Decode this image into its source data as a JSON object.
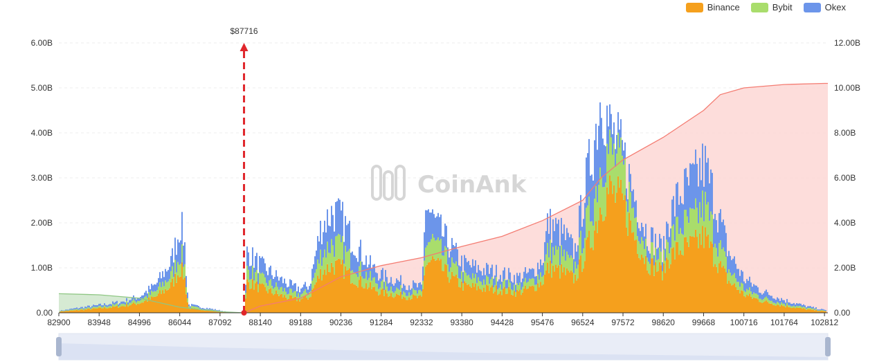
{
  "legend": [
    {
      "name": "Binance",
      "color": "#f5a01d"
    },
    {
      "name": "Bybit",
      "color": "#a9dd6c"
    },
    {
      "name": "Okex",
      "color": "#6c95ea"
    }
  ],
  "watermark": "CoinAnk",
  "marker_label": "$87716",
  "chart_data": {
    "type": "area",
    "x_categories": [
      "82900",
      "83948",
      "84996",
      "86044",
      "87092",
      "88140",
      "89188",
      "90236",
      "91284",
      "92332",
      "93380",
      "94428",
      "95476",
      "96524",
      "97572",
      "98620",
      "99668",
      "100716",
      "101764",
      "102812"
    ],
    "x_range": [
      82900,
      102900
    ],
    "current_price": 87716,
    "left_axis": {
      "ticks": [
        "0.00",
        "1.00B",
        "2.00B",
        "3.00B",
        "4.00B",
        "5.00B",
        "6.00B"
      ],
      "range": [
        0,
        6
      ]
    },
    "right_axis": {
      "ticks": [
        "0.00",
        "2.00B",
        "4.00B",
        "6.00B",
        "8.00B",
        "10.00B",
        "12.00B"
      ],
      "range": [
        0,
        12
      ]
    },
    "series": [
      {
        "name": "Binance",
        "stack": "liquidation",
        "points": [
          [
            82950,
            0.03
          ],
          [
            83400,
            0.06
          ],
          [
            83948,
            0.1
          ],
          [
            84500,
            0.14
          ],
          [
            84996,
            0.22
          ],
          [
            85400,
            0.35
          ],
          [
            85800,
            0.6
          ],
          [
            86000,
            0.9
          ],
          [
            86044,
            1.0
          ],
          [
            86150,
            0.8
          ],
          [
            86250,
            0.1
          ],
          [
            86700,
            0.06
          ],
          [
            87092,
            0.03
          ],
          [
            87300,
            0.01
          ],
          [
            87716,
            0.0
          ],
          [
            87780,
            0.7
          ],
          [
            87950,
            0.62
          ],
          [
            88140,
            0.55
          ],
          [
            88600,
            0.4
          ],
          [
            89000,
            0.3
          ],
          [
            89188,
            0.3
          ],
          [
            89400,
            0.35
          ],
          [
            89700,
            0.9
          ],
          [
            90000,
            1.05
          ],
          [
            90236,
            1.0
          ],
          [
            90500,
            0.8
          ],
          [
            91000,
            0.55
          ],
          [
            91284,
            0.45
          ],
          [
            91800,
            0.38
          ],
          [
            92332,
            0.32
          ],
          [
            92420,
            1.1
          ],
          [
            92600,
            1.15
          ],
          [
            93000,
            0.85
          ],
          [
            93380,
            0.6
          ],
          [
            93800,
            0.55
          ],
          [
            94428,
            0.5
          ],
          [
            94800,
            0.45
          ],
          [
            95200,
            0.55
          ],
          [
            95476,
            0.7
          ],
          [
            95600,
            1.0
          ],
          [
            96000,
            0.9
          ],
          [
            96300,
            0.75
          ],
          [
            96524,
            1.2
          ],
          [
            96800,
            1.8
          ],
          [
            97000,
            2.5
          ],
          [
            97200,
            2.7
          ],
          [
            97572,
            2.4
          ],
          [
            97800,
            1.8
          ],
          [
            98200,
            1.1
          ],
          [
            98620,
            0.9
          ],
          [
            98700,
            1.2
          ],
          [
            99000,
            1.4
          ],
          [
            99400,
            1.5
          ],
          [
            99668,
            1.7
          ],
          [
            99900,
            1.3
          ],
          [
            100300,
            0.7
          ],
          [
            100716,
            0.4
          ],
          [
            101200,
            0.25
          ],
          [
            101764,
            0.15
          ],
          [
            102300,
            0.08
          ],
          [
            102812,
            0.03
          ]
        ]
      },
      {
        "name": "Bybit",
        "stack": "liquidation",
        "points": [
          [
            82950,
            0.01
          ],
          [
            83400,
            0.02
          ],
          [
            83948,
            0.03
          ],
          [
            84500,
            0.05
          ],
          [
            84996,
            0.07
          ],
          [
            85400,
            0.12
          ],
          [
            85800,
            0.22
          ],
          [
            86000,
            0.32
          ],
          [
            86044,
            0.35
          ],
          [
            86150,
            0.3
          ],
          [
            86250,
            0.04
          ],
          [
            86700,
            0.02
          ],
          [
            87092,
            0.01
          ],
          [
            87300,
            0.0
          ],
          [
            87716,
            0.0
          ],
          [
            87780,
            0.28
          ],
          [
            87950,
            0.24
          ],
          [
            88140,
            0.2
          ],
          [
            88600,
            0.15
          ],
          [
            89000,
            0.11
          ],
          [
            89188,
            0.11
          ],
          [
            89400,
            0.12
          ],
          [
            89700,
            0.4
          ],
          [
            90000,
            0.5
          ],
          [
            90236,
            0.45
          ],
          [
            90500,
            0.34
          ],
          [
            91000,
            0.2
          ],
          [
            91284,
            0.16
          ],
          [
            91800,
            0.12
          ],
          [
            92332,
            0.1
          ],
          [
            92420,
            0.45
          ],
          [
            92600,
            0.45
          ],
          [
            93000,
            0.3
          ],
          [
            93380,
            0.2
          ],
          [
            93800,
            0.18
          ],
          [
            94428,
            0.15
          ],
          [
            94800,
            0.13
          ],
          [
            95200,
            0.15
          ],
          [
            95476,
            0.22
          ],
          [
            95600,
            0.4
          ],
          [
            96000,
            0.35
          ],
          [
            96300,
            0.25
          ],
          [
            96524,
            0.55
          ],
          [
            96800,
            0.7
          ],
          [
            97000,
            0.95
          ],
          [
            97200,
            0.9
          ],
          [
            97572,
            0.75
          ],
          [
            97800,
            0.55
          ],
          [
            98200,
            0.33
          ],
          [
            98620,
            0.25
          ],
          [
            98700,
            0.4
          ],
          [
            99000,
            0.5
          ],
          [
            99400,
            0.55
          ],
          [
            99668,
            0.7
          ],
          [
            99900,
            0.55
          ],
          [
            100300,
            0.25
          ],
          [
            100716,
            0.13
          ],
          [
            101200,
            0.08
          ],
          [
            101764,
            0.05
          ],
          [
            102300,
            0.03
          ],
          [
            102812,
            0.01
          ]
        ]
      },
      {
        "name": "Okex",
        "stack": "liquidation",
        "points": [
          [
            82950,
            0.01
          ],
          [
            83400,
            0.03
          ],
          [
            83948,
            0.04
          ],
          [
            84500,
            0.05
          ],
          [
            84996,
            0.08
          ],
          [
            85400,
            0.15
          ],
          [
            85800,
            0.3
          ],
          [
            86000,
            0.55
          ],
          [
            86044,
            0.65
          ],
          [
            86150,
            0.5
          ],
          [
            86250,
            0.04
          ],
          [
            86700,
            0.03
          ],
          [
            87092,
            0.01
          ],
          [
            87300,
            0.0
          ],
          [
            87716,
            0.0
          ],
          [
            87780,
            0.4
          ],
          [
            87950,
            0.34
          ],
          [
            88140,
            0.3
          ],
          [
            88600,
            0.22
          ],
          [
            89000,
            0.15
          ],
          [
            89188,
            0.13
          ],
          [
            89400,
            0.14
          ],
          [
            89700,
            0.6
          ],
          [
            90000,
            0.7
          ],
          [
            90236,
            0.65
          ],
          [
            90500,
            0.5
          ],
          [
            91000,
            0.28
          ],
          [
            91284,
            0.22
          ],
          [
            91800,
            0.18
          ],
          [
            92332,
            0.13
          ],
          [
            92420,
            0.9
          ],
          [
            92600,
            0.5
          ],
          [
            93000,
            0.4
          ],
          [
            93380,
            0.3
          ],
          [
            93800,
            0.25
          ],
          [
            94428,
            0.22
          ],
          [
            94800,
            0.2
          ],
          [
            95200,
            0.2
          ],
          [
            95476,
            0.3
          ],
          [
            95600,
            0.6
          ],
          [
            96000,
            0.5
          ],
          [
            96300,
            0.35
          ],
          [
            96524,
            0.8
          ],
          [
            96800,
            1.3
          ],
          [
            97000,
            1.5
          ],
          [
            97200,
            0.5
          ],
          [
            97572,
            0.3
          ],
          [
            97800,
            0.4
          ],
          [
            98200,
            0.3
          ],
          [
            98620,
            0.25
          ],
          [
            98700,
            0.4
          ],
          [
            99000,
            0.7
          ],
          [
            99400,
            0.9
          ],
          [
            99668,
            0.9
          ],
          [
            99900,
            0.8
          ],
          [
            100300,
            0.4
          ],
          [
            100716,
            0.22
          ],
          [
            101200,
            0.14
          ],
          [
            101764,
            0.08
          ],
          [
            102300,
            0.04
          ],
          [
            102812,
            0.02
          ]
        ]
      },
      {
        "name": "cumulative-short",
        "axis": "right",
        "color": "#f47c72",
        "points": [
          [
            87716,
            0.0
          ],
          [
            88140,
            0.3
          ],
          [
            89188,
            0.65
          ],
          [
            90236,
            1.6
          ],
          [
            91284,
            2.1
          ],
          [
            92332,
            2.45
          ],
          [
            93380,
            2.95
          ],
          [
            94428,
            3.4
          ],
          [
            95476,
            4.1
          ],
          [
            96524,
            5.0
          ],
          [
            97000,
            6.0
          ],
          [
            97572,
            6.8
          ],
          [
            98620,
            7.8
          ],
          [
            99668,
            9.0
          ],
          [
            100100,
            9.7
          ],
          [
            100716,
            10.0
          ],
          [
            101764,
            10.15
          ],
          [
            102812,
            10.2
          ],
          [
            102900,
            10.2
          ]
        ]
      },
      {
        "name": "cumulative-long",
        "axis": "right",
        "color": "#a9d7a0",
        "points": [
          [
            82900,
            0.85
          ],
          [
            83948,
            0.8
          ],
          [
            84996,
            0.65
          ],
          [
            86044,
            0.25
          ],
          [
            87092,
            0.05
          ],
          [
            87716,
            0.0
          ]
        ]
      }
    ]
  }
}
